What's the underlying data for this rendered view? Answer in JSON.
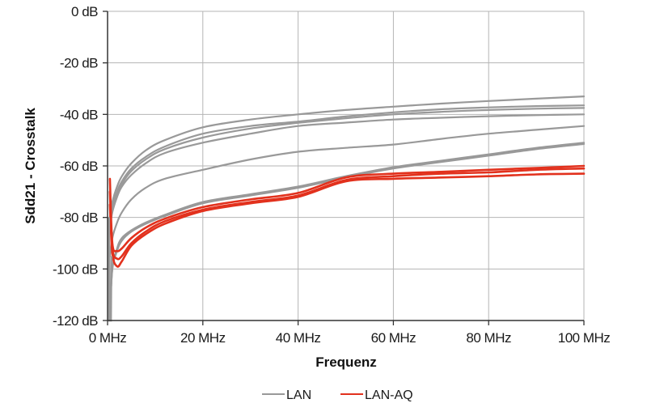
{
  "chart_data": {
    "type": "line",
    "title": "",
    "xlabel": "Frequenz",
    "ylabel": "Sdd21 - Crosstalk",
    "xlim": [
      0,
      100
    ],
    "ylim": [
      -120,
      0
    ],
    "grid": true,
    "legend_position": "bottom",
    "x_ticks": [
      "0 MHz",
      "20 MHz",
      "40 MHz",
      "60 MHz",
      "80 MHz",
      "100 MHz"
    ],
    "y_ticks": [
      "0 dB",
      "-20 dB",
      "-40 dB",
      "-60 dB",
      "-80 dB",
      "-100 dB",
      "-120 dB"
    ],
    "x_tick_values": [
      0,
      20,
      40,
      60,
      80,
      100
    ],
    "y_tick_values": [
      0,
      -20,
      -40,
      -60,
      -80,
      -100,
      -120
    ],
    "legend": [
      {
        "name": "LAN",
        "color": "#999999"
      },
      {
        "name": "LAN-AQ",
        "color": "#e2311d"
      }
    ],
    "x": [
      0.5,
      1,
      2,
      3,
      5,
      8,
      12,
      20,
      30,
      40,
      50,
      60,
      70,
      80,
      90,
      100
    ],
    "series": [
      {
        "name": "LAN",
        "group": "LAN",
        "color": "#999999",
        "values": [
          -80,
          -74,
          -68,
          -64,
          -59,
          -54,
          -50,
          -45,
          -42,
          -40,
          -38.3,
          -37,
          -35.8,
          -34.8,
          -33.9,
          -33
        ]
      },
      {
        "name": "LAN",
        "group": "LAN",
        "color": "#999999",
        "values": [
          -82,
          -76,
          -70,
          -66,
          -61,
          -56.5,
          -52.5,
          -47.5,
          -44.5,
          -42.8,
          -40.8,
          -39.2,
          -38,
          -37.3,
          -36.8,
          -36.5
        ]
      },
      {
        "name": "LAN",
        "group": "LAN",
        "color": "#999999",
        "values": [
          -83,
          -77,
          -71,
          -67,
          -62,
          -57.5,
          -53.5,
          -49,
          -45.5,
          -43.3,
          -41.5,
          -40,
          -39,
          -38.3,
          -37.8,
          -37.5
        ]
      },
      {
        "name": "LAN",
        "group": "LAN",
        "color": "#999999",
        "values": [
          -84,
          -78,
          -72,
          -68,
          -63.5,
          -59,
          -55,
          -51,
          -47.5,
          -44.5,
          -43.2,
          -42,
          -41.3,
          -40.7,
          -40.3,
          -40
        ]
      },
      {
        "name": "LAN",
        "group": "LAN",
        "color": "#999999",
        "values": [
          -95,
          -88,
          -82,
          -78,
          -73,
          -68.5,
          -65,
          -61.5,
          -57.5,
          -54.5,
          -53,
          -51.7,
          -49.5,
          -47.5,
          -46,
          -44.5
        ]
      },
      {
        "name": "LAN",
        "group": "LAN",
        "color": "#999999",
        "values": [
          -118,
          -100,
          -92,
          -88,
          -85,
          -82,
          -79,
          -74,
          -71,
          -68,
          -64,
          -60.5,
          -58,
          -55.5,
          -53,
          -51
        ]
      },
      {
        "name": "LAN",
        "group": "LAN",
        "color": "#999999",
        "values": [
          -118,
          -100,
          -93,
          -89,
          -85.5,
          -82.5,
          -79.5,
          -74.5,
          -71.5,
          -68.5,
          -64.5,
          -61,
          -58.5,
          -56,
          -53.5,
          -51.5
        ]
      },
      {
        "name": "LAN-AQ",
        "group": "LAN-AQ",
        "color": "#e2311d",
        "values": [
          -65,
          -90,
          -93,
          -92,
          -88,
          -84,
          -80.5,
          -76,
          -73,
          -70.5,
          -64.5,
          -63,
          -62.3,
          -61.5,
          -60.8,
          -60
        ]
      },
      {
        "name": "LAN-AQ",
        "group": "LAN-AQ",
        "color": "#e2311d",
        "values": [
          -70,
          -92,
          -96,
          -95,
          -90,
          -85.5,
          -81.5,
          -77,
          -74,
          -71.5,
          -65.5,
          -64,
          -63,
          -62.5,
          -61.5,
          -61
        ]
      },
      {
        "name": "LAN-AQ",
        "group": "LAN-AQ",
        "color": "#e2311d",
        "values": [
          -75,
          -94,
          -99,
          -97,
          -91,
          -86.5,
          -82.5,
          -77.5,
          -74.5,
          -72,
          -66,
          -65,
          -64.5,
          -64,
          -63.3,
          -63
        ]
      }
    ]
  }
}
